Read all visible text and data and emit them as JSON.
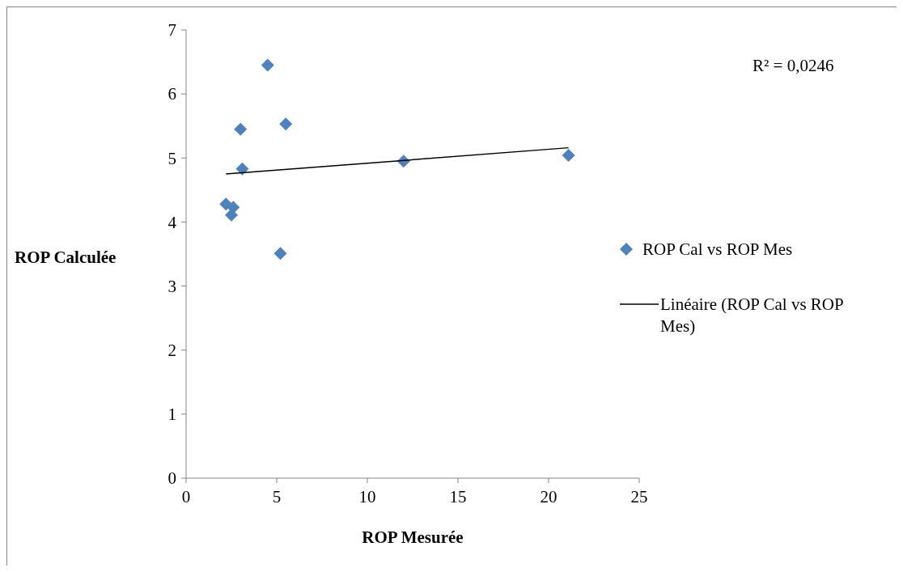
{
  "chart_data": {
    "type": "scatter",
    "xlabel": "ROP Mesurée",
    "ylabel": "ROP Calculée",
    "xlim": [
      0,
      25
    ],
    "xticks": [
      0,
      5,
      10,
      15,
      20,
      25
    ],
    "ylim": [
      0,
      7
    ],
    "yticks": [
      0,
      1,
      2,
      3,
      4,
      5,
      6,
      7
    ],
    "grid": false,
    "legend": "right",
    "annotations": [
      "R² = 0,0246"
    ],
    "series": [
      {
        "name": "ROP Cal vs ROP Mes",
        "marker": "diamond",
        "color": "#4f81bd",
        "x": [
          4.5,
          3.0,
          5.5,
          3.1,
          12.0,
          21.1,
          2.2,
          2.6,
          2.5,
          5.2
        ],
        "values": [
          6.45,
          5.45,
          5.53,
          4.83,
          4.95,
          5.04,
          4.28,
          4.23,
          4.11,
          3.51
        ]
      },
      {
        "name": "Linéaire (ROP Cal vs ROP Mes)",
        "type": "line",
        "marker": "none",
        "line_style": "solid",
        "color": "#000000",
        "x": [
          2.2,
          21.1
        ],
        "values": [
          4.75,
          5.16
        ]
      }
    ]
  }
}
